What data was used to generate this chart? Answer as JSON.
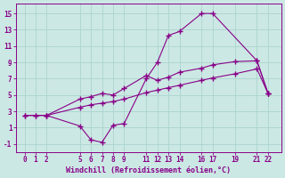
{
  "bg_color": "#cce8e4",
  "line_color": "#880088",
  "xlabel": "Windchill (Refroidissement éolien,°C)",
  "xlim": [
    -0.8,
    23.2
  ],
  "ylim": [
    -2.0,
    16.2
  ],
  "xticks": [
    0,
    1,
    2,
    5,
    6,
    7,
    8,
    9,
    11,
    12,
    13,
    14,
    16,
    17,
    19,
    21,
    22
  ],
  "yticks": [
    -1,
    1,
    3,
    5,
    7,
    9,
    11,
    13,
    15
  ],
  "series": [
    {
      "x": [
        0,
        1,
        2,
        5,
        6,
        7,
        8,
        9,
        11,
        12,
        13,
        14,
        16,
        17,
        19,
        21,
        22
      ],
      "y": [
        2.5,
        2.5,
        2.5,
        4.5,
        4.8,
        5.2,
        5.0,
        5.8,
        7.4,
        6.8,
        7.2,
        7.8,
        8.3,
        8.7,
        9.1,
        9.2,
        5.2
      ]
    },
    {
      "x": [
        2,
        5,
        6,
        7,
        8,
        9,
        11,
        12,
        13,
        14,
        16,
        17,
        21,
        22
      ],
      "y": [
        2.5,
        1.2,
        -0.5,
        -0.8,
        1.3,
        1.5,
        7.0,
        9.0,
        12.3,
        12.8,
        15.0,
        15.0,
        9.2,
        5.2
      ]
    },
    {
      "x": [
        0,
        1,
        2,
        5,
        6,
        7,
        8,
        9,
        11,
        12,
        13,
        14,
        16,
        17,
        19,
        21,
        22
      ],
      "y": [
        2.5,
        2.5,
        2.5,
        3.5,
        3.8,
        4.0,
        4.2,
        4.5,
        5.3,
        5.6,
        5.9,
        6.2,
        6.8,
        7.1,
        7.6,
        8.2,
        5.2
      ]
    }
  ],
  "grid_color": "#aad4ce",
  "spine_color": "#880088",
  "tick_fontsize": 5.5,
  "xlabel_fontsize": 6.0
}
